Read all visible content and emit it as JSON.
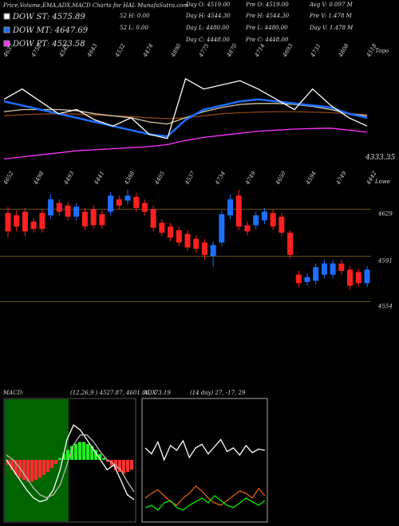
{
  "header": {
    "title": "Price,Volume,EMA,ADX,MACD Charts for HAL MunafaSutra.com",
    "legend": [
      {
        "label": "DOW ST: 4575.89",
        "color": "#ffffff"
      },
      {
        "label": "DOW MT: 4647.69",
        "color": "#1e6fff"
      },
      {
        "label": "DOW PT: 4523.58",
        "color": "#ff33ff"
      }
    ],
    "stats": [
      [
        "Day O: 4519.00",
        "Day H: 4544.30",
        "Day L: 4480.00",
        "Day C: 4448.00"
      ],
      [
        "52 H: 0.00",
        "52 L: 0.00"
      ],
      [
        "Pre O: 4519.00",
        "Pre H: 4544.30",
        "Pre L: 4480.00",
        "Pre C: 4448.00"
      ],
      [
        "Avg V: 0.097 M",
        "Pre V: 1.478 M",
        "Day V: 1.478 M"
      ]
    ]
  },
  "top_panel": {
    "corner_label": "Topo",
    "end_label": "4333.35",
    "x_labels": [
      "4637",
      "4758",
      "4545",
      "4643",
      "4532",
      "4474",
      "4890",
      "4775",
      "4870",
      "4714",
      "4693",
      "4731",
      "4808",
      "4518"
    ],
    "ylim": [
      4300,
      4900
    ],
    "series": [
      {
        "color": "#ffffff",
        "values": [
          4650,
          4700,
          4640,
          4580,
          4600,
          4550,
          4520,
          4560,
          4480,
          4460,
          4750,
          4700,
          4720,
          4740,
          4700,
          4650,
          4600,
          4700,
          4620,
          4560,
          4520
        ]
      },
      {
        "color": "#1e6fff",
        "values": [
          4640,
          4620,
          4600,
          4580,
          4560,
          4540,
          4520,
          4500,
          4480,
          4470,
          4550,
          4600,
          4620,
          4640,
          4650,
          4640,
          4630,
          4620,
          4610,
          4580,
          4560
        ]
      },
      {
        "color": "#d8c9a0",
        "values": [
          4590,
          4600,
          4600,
          4600,
          4595,
          4580,
          4570,
          4560,
          4540,
          4530,
          4560,
          4590,
          4610,
          4625,
          4630,
          4630,
          4625,
          4615,
          4600,
          4580,
          4570
        ]
      },
      {
        "color": "#8b4513",
        "values": [
          4570,
          4575,
          4578,
          4580,
          4578,
          4574,
          4570,
          4566,
          4560,
          4556,
          4560,
          4570,
          4580,
          4585,
          4588,
          4590,
          4590,
          4588,
          4585,
          4580,
          4575
        ]
      },
      {
        "color": "#ff33ff",
        "values": [
          4360,
          4370,
          4380,
          4390,
          4400,
          4405,
          4410,
          4415,
          4420,
          4430,
          4450,
          4465,
          4475,
          4485,
          4495,
          4500,
          4505,
          4508,
          4510,
          4500,
          4490
        ]
      }
    ]
  },
  "price_panel": {
    "corner_label": "Lowe",
    "x_labels": [
      "4652",
      "4498",
      "4493",
      "4441",
      "4388",
      "4405",
      "4537",
      "4734",
      "4749",
      "4650",
      "4594",
      "4749",
      "4442"
    ],
    "ylim": [
      4495,
      4650
    ],
    "yticks": [
      4629,
      4591,
      4554
    ],
    "up_color": "#1e6fff",
    "down_color": "#ff2020",
    "candles": [
      {
        "open": 4626,
        "high": 4631,
        "low": 4606,
        "close": 4611
      },
      {
        "open": 4624,
        "high": 4628,
        "low": 4611,
        "close": 4615
      },
      {
        "open": 4627,
        "high": 4630,
        "low": 4607,
        "close": 4611
      },
      {
        "open": 4619,
        "high": 4622,
        "low": 4610,
        "close": 4613
      },
      {
        "open": 4626,
        "high": 4629,
        "low": 4610,
        "close": 4613
      },
      {
        "open": 4624,
        "high": 4641,
        "low": 4621,
        "close": 4637
      },
      {
        "open": 4634,
        "high": 4637,
        "low": 4624,
        "close": 4627
      },
      {
        "open": 4632,
        "high": 4635,
        "low": 4620,
        "close": 4623
      },
      {
        "open": 4623,
        "high": 4634,
        "low": 4620,
        "close": 4631
      },
      {
        "open": 4627,
        "high": 4630,
        "low": 4612,
        "close": 4615
      },
      {
        "open": 4629,
        "high": 4632,
        "low": 4613,
        "close": 4616
      },
      {
        "open": 4625,
        "high": 4628,
        "low": 4613,
        "close": 4616
      },
      {
        "open": 4627,
        "high": 4643,
        "low": 4624,
        "close": 4640
      },
      {
        "open": 4637,
        "high": 4640,
        "low": 4629,
        "close": 4632
      },
      {
        "open": 4636,
        "high": 4645,
        "low": 4633,
        "close": 4640
      },
      {
        "open": 4639,
        "high": 4642,
        "low": 4627,
        "close": 4630
      },
      {
        "open": 4634,
        "high": 4637,
        "low": 4624,
        "close": 4627
      },
      {
        "open": 4629,
        "high": 4632,
        "low": 4611,
        "close": 4614
      },
      {
        "open": 4618,
        "high": 4621,
        "low": 4607,
        "close": 4610
      },
      {
        "open": 4615,
        "high": 4618,
        "low": 4603,
        "close": 4606
      },
      {
        "open": 4612,
        "high": 4615,
        "low": 4599,
        "close": 4602
      },
      {
        "open": 4609,
        "high": 4612,
        "low": 4595,
        "close": 4598
      },
      {
        "open": 4605,
        "high": 4608,
        "low": 4594,
        "close": 4597
      },
      {
        "open": 4602,
        "high": 4605,
        "low": 4588,
        "close": 4592
      },
      {
        "open": 4591,
        "high": 4603,
        "low": 4582,
        "close": 4600
      },
      {
        "open": 4602,
        "high": 4628,
        "low": 4599,
        "close": 4625
      },
      {
        "open": 4624,
        "high": 4641,
        "low": 4621,
        "close": 4637
      },
      {
        "open": 4640,
        "high": 4645,
        "low": 4612,
        "close": 4615
      },
      {
        "open": 4616,
        "high": 4619,
        "low": 4608,
        "close": 4611
      },
      {
        "open": 4616,
        "high": 4627,
        "low": 4613,
        "close": 4624
      },
      {
        "open": 4620,
        "high": 4630,
        "low": 4617,
        "close": 4627
      },
      {
        "open": 4626,
        "high": 4629,
        "low": 4612,
        "close": 4615
      },
      {
        "open": 4623,
        "high": 4626,
        "low": 4607,
        "close": 4610
      },
      {
        "open": 4610,
        "high": 4612,
        "low": 4589,
        "close": 4592
      },
      {
        "open": 4576,
        "high": 4579,
        "low": 4566,
        "close": 4569
      },
      {
        "open": 4570,
        "high": 4577,
        "low": 4567,
        "close": 4574
      },
      {
        "open": 4571,
        "high": 4585,
        "low": 4568,
        "close": 4582
      },
      {
        "open": 4576,
        "high": 4588,
        "low": 4573,
        "close": 4585
      },
      {
        "open": 4576,
        "high": 4588,
        "low": 4573,
        "close": 4585
      },
      {
        "open": 4585,
        "high": 4588,
        "low": 4576,
        "close": 4579
      },
      {
        "open": 4580,
        "high": 4583,
        "low": 4564,
        "close": 4567
      },
      {
        "open": 4578,
        "high": 4581,
        "low": 4566,
        "close": 4569
      },
      {
        "open": 4569,
        "high": 4583,
        "low": 4566,
        "close": 4580
      }
    ]
  },
  "macd_panel": {
    "label": "MACD:",
    "params": "(12,26,9 ) 4527.87, 4601.06, -73.19",
    "ylim": [
      -60,
      60
    ],
    "histogram": [
      -5,
      -10,
      -15,
      -18,
      -20,
      -22,
      -22,
      -20,
      -18,
      -15,
      -12,
      -8,
      -4,
      2,
      6,
      10,
      14,
      16,
      18,
      18,
      16,
      14,
      10,
      6,
      2,
      -2,
      -6,
      -10,
      -12,
      -14,
      -12,
      -10
    ],
    "series": [
      {
        "color": "#ffffff",
        "values": [
          0,
          -10,
          -20,
          -30,
          -38,
          -42,
          -40,
          -30,
          -10,
          20,
          35,
          30,
          20,
          10,
          0,
          -10,
          -5,
          -20,
          -35,
          -40
        ]
      },
      {
        "color": "#bbbbbb",
        "values": [
          5,
          0,
          -8,
          -18,
          -28,
          -35,
          -38,
          -35,
          -25,
          -5,
          15,
          25,
          25,
          18,
          8,
          0,
          -4,
          -10,
          -22,
          -32
        ]
      }
    ]
  },
  "adx_panel": {
    "label": "ADX",
    "params": "(14 day) 27, -17, 29",
    "ylim": [
      0,
      100
    ],
    "series": [
      {
        "color": "#ffffff",
        "values": [
          60,
          55,
          65,
          50,
          62,
          58,
          66,
          52,
          60,
          63,
          55,
          61,
          67,
          57,
          60,
          54,
          62,
          56,
          59,
          58
        ]
      },
      {
        "color": "#e06010",
        "values": [
          18,
          22,
          25,
          20,
          15,
          12,
          18,
          22,
          28,
          24,
          18,
          14,
          12,
          16,
          20,
          24,
          22,
          18,
          26,
          20
        ]
      },
      {
        "color": "#00ee00",
        "values": [
          10,
          12,
          8,
          14,
          16,
          10,
          8,
          12,
          15,
          18,
          14,
          20,
          16,
          12,
          10,
          14,
          18,
          15,
          12,
          16
        ]
      }
    ]
  }
}
